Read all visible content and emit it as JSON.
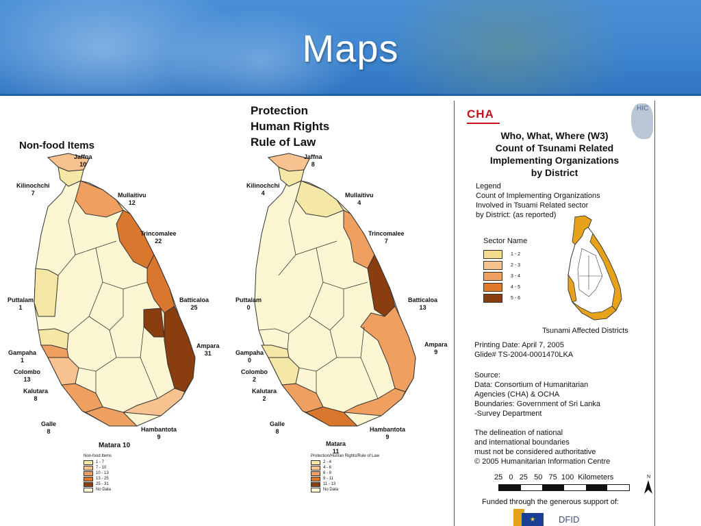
{
  "slide": {
    "title": "Maps"
  },
  "left_map": {
    "title": "Non-food Items",
    "labels": [
      {
        "name": "Jaffna",
        "value": "10"
      },
      {
        "name": "Kilinochchi",
        "value": "7"
      },
      {
        "name": "Mullaitivu",
        "value": "12"
      },
      {
        "name": "Trincomalee",
        "value": "22"
      },
      {
        "name": "Batticaloa",
        "value": "25"
      },
      {
        "name": "Ampara",
        "value": "31"
      },
      {
        "name": "Puttalam",
        "value": "1"
      },
      {
        "name": "Gampaha",
        "value": "1"
      },
      {
        "name": "Colombo",
        "value": "13"
      },
      {
        "name": "Kalutara",
        "value": "8"
      },
      {
        "name": "Galle",
        "value": "8"
      },
      {
        "name": "Matara 10",
        "value": ""
      },
      {
        "name": "Hambantota",
        "value": "9"
      }
    ],
    "legend_title": "Non-food Items",
    "legend": [
      {
        "label": "1 - 7",
        "color": "#f5e7a6"
      },
      {
        "label": "7 - 10",
        "color": "#f7c28f"
      },
      {
        "label": "10 - 13",
        "color": "#ef9f5f"
      },
      {
        "label": "13 - 25",
        "color": "#d9772e"
      },
      {
        "label": "25 - 31",
        "color": "#8a3e10"
      },
      {
        "label": "No Data",
        "color": "#fcf6d2"
      }
    ]
  },
  "middle_map": {
    "title_lines": [
      "Protection",
      "Human Rights",
      "Rule of Law"
    ],
    "labels": [
      {
        "name": "Jaffna",
        "value": "8"
      },
      {
        "name": "Kilinochchi",
        "value": "4"
      },
      {
        "name": "Mullaitivu",
        "value": "4"
      },
      {
        "name": "Trincomalee",
        "value": "7"
      },
      {
        "name": "Batticaloa",
        "value": "13"
      },
      {
        "name": "Ampara",
        "value": "9"
      },
      {
        "name": "Puttalam",
        "value": "0"
      },
      {
        "name": "Gampaha",
        "value": "0"
      },
      {
        "name": "Colombo",
        "value": "2"
      },
      {
        "name": "Kalutara",
        "value": "2"
      },
      {
        "name": "Galle",
        "value": "8"
      },
      {
        "name": "Matara",
        "value": "11"
      },
      {
        "name": "Hambantota",
        "value": "9"
      }
    ],
    "legend_title": "Protection/Human Rights/Rule of Law",
    "legend": [
      {
        "label": "2 - 4",
        "color": "#f5e7a6"
      },
      {
        "label": "4 - 6",
        "color": "#f7c28f"
      },
      {
        "label": "6 - 9",
        "color": "#ef9f5f"
      },
      {
        "label": "9 - 11",
        "color": "#d9772e"
      },
      {
        "label": "11 - 13",
        "color": "#8a3e10"
      },
      {
        "label": "No Data",
        "color": "#fcf6d2"
      }
    ]
  },
  "right_sheet": {
    "logo_left": "CHA",
    "logo_right": "HIC",
    "title_lines": [
      "Who, What, Where (W3)",
      "Count of Tsunami Related",
      "Implementing Organizations",
      "by District"
    ],
    "legend_heading": "Legend",
    "legend_desc": [
      "Count of Implementing Organizations",
      "Involved in Tsuami Related sector",
      "by District: (as reported)"
    ],
    "sector_name": "Sector Name",
    "sector_legend": [
      {
        "label": "1 - 2",
        "color": "#f3dc8c"
      },
      {
        "label": "2 - 3",
        "color": "#f7c28f"
      },
      {
        "label": "3 - 4",
        "color": "#ef9f5f"
      },
      {
        "label": "4 - 5",
        "color": "#e0782a"
      },
      {
        "label": "5 - 6",
        "color": "#8a3e10"
      }
    ],
    "affected_caption": "Tsunami Affected Districts",
    "printing": [
      "Printing Date: April 7, 2005",
      "Glide# TS-2004-0001470LKA"
    ],
    "source": [
      "Source:",
      "Data: Consortium of Humanitarian",
      "Agencies (CHA) & OCHA",
      "Boundaries: Government of Sri Lanka",
      "-Survey Department"
    ],
    "disclaimer": [
      "The delineation of national",
      "and international boundaries",
      "must not be considered authoritative",
      "© 2005 Humanitarian Information Centre"
    ],
    "scale_numbers": "25   0   25   50   75  100  Kilometers",
    "north": "N",
    "funded": "Funded through the generous support of:",
    "funder": "DFID"
  },
  "colors": {
    "banner": "#3f86d0",
    "pale": "#fcf6d2",
    "light": "#f7c28f",
    "mid": "#ef9f5f",
    "orange": "#d9772e",
    "dark": "#8a3e10",
    "affected": "#e6a21a"
  }
}
